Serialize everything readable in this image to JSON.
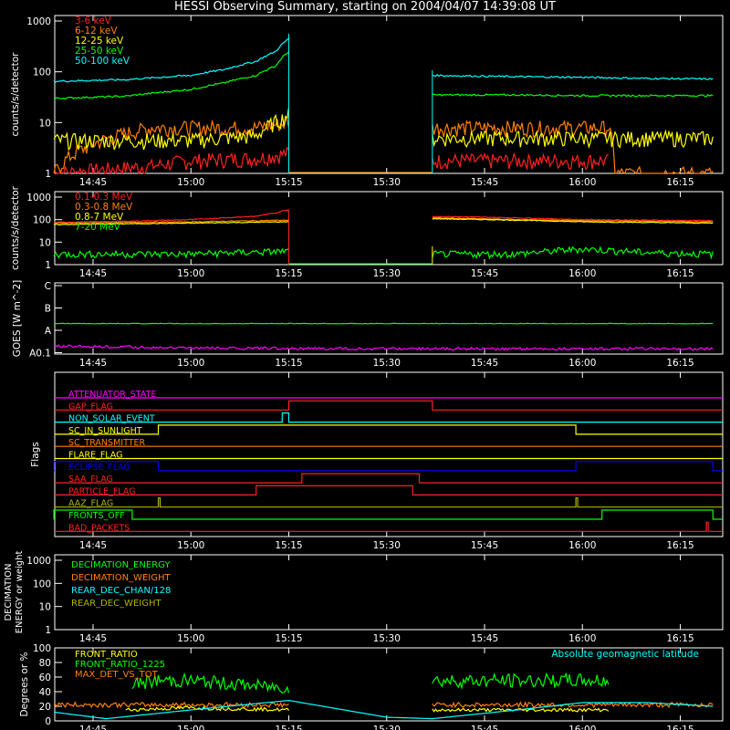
{
  "title": "HESSI Observing Summary, starting on 2004/04/07 14:39:08 UT",
  "x_ticks": [
    "14:45",
    "15:00",
    "15:15",
    "15:30",
    "15:45",
    "16:00",
    "16:15"
  ],
  "colors": {
    "red": "#ff2020",
    "orange": "#ff8000",
    "yellow": "#ffff00",
    "green": "#00ff00",
    "cyan": "#00ffff",
    "magenta": "#ff00ff",
    "blue": "#0000ff",
    "olive": "#b0b000",
    "white": "#ffffff"
  },
  "chart_data": [
    {
      "type": "line",
      "panel": "count rates (low energy)",
      "ylabel": "counts/s/detector",
      "yscale": "log",
      "ylim": [
        1,
        1000
      ],
      "y_ticks": [
        "1",
        "10",
        "100",
        "1000"
      ],
      "gaps": [
        [
          "15:15",
          "15:37"
        ]
      ],
      "series": [
        {
          "name": "3-6 keV",
          "color": "#ff2020",
          "x": [
            "14:39",
            "14:54",
            "15:00",
            "15:10",
            "15:15",
            "15:37",
            "15:50",
            "16:00",
            "16:04"
          ],
          "values": [
            1,
            1.4,
            1.8,
            2,
            2.5,
            1.8,
            1.8,
            1.8,
            1.8
          ]
        },
        {
          "name": "6-12 keV",
          "color": "#ff8000",
          "x": [
            "14:39",
            "14:54",
            "15:00",
            "15:10",
            "15:15",
            "15:37",
            "15:50",
            "16:00",
            "16:04",
            "16:05",
            "16:20"
          ],
          "values": [
            1,
            8,
            8,
            8,
            10,
            8,
            8,
            8,
            8,
            1,
            1
          ]
        },
        {
          "name": "12-25 keV",
          "color": "#ffff00",
          "x": [
            "14:39",
            "14:54",
            "15:00",
            "15:10",
            "15:14",
            "15:15",
            "15:37",
            "15:50",
            "16:00",
            "16:04",
            "16:20"
          ],
          "values": [
            4.5,
            4.5,
            4.5,
            5.5,
            12,
            15,
            5,
            5,
            5,
            5,
            5
          ]
        },
        {
          "name": "25-50 keV",
          "color": "#00ff00",
          "x": [
            "14:39",
            "14:50",
            "15:00",
            "15:05",
            "15:10",
            "15:13",
            "15:15",
            "15:37",
            "15:50",
            "16:00",
            "16:10",
            "16:20"
          ],
          "values": [
            30,
            33,
            45,
            60,
            85,
            130,
            250,
            35,
            35,
            34,
            34,
            34
          ]
        },
        {
          "name": "50-100 keV",
          "color": "#00ffff",
          "x": [
            "14:39",
            "14:50",
            "15:00",
            "15:05",
            "15:10",
            "15:13",
            "15:15",
            "15:37",
            "15:50",
            "16:00",
            "16:10",
            "16:20"
          ],
          "values": [
            65,
            70,
            85,
            110,
            160,
            250,
            450,
            85,
            80,
            78,
            74,
            72
          ]
        }
      ]
    },
    {
      "type": "line",
      "panel": "count rates (high energy)",
      "ylabel": "counts/s/detector",
      "yscale": "log",
      "ylim": [
        1,
        1000
      ],
      "y_ticks": [
        "1",
        "10",
        "100",
        "1000"
      ],
      "gaps": [
        [
          "15:15",
          "15:37"
        ]
      ],
      "series": [
        {
          "name": "0.1-0.3 MeV",
          "color": "#ff2020",
          "x": [
            "14:39",
            "14:50",
            "15:00",
            "15:10",
            "15:13",
            "15:15",
            "15:37",
            "15:50",
            "16:00",
            "16:20"
          ],
          "values": [
            75,
            85,
            100,
            140,
            200,
            280,
            140,
            120,
            100,
            90
          ]
        },
        {
          "name": "0.3-0.8 MeV",
          "color": "#ff8000",
          "x": [
            "14:39",
            "15:00",
            "15:15",
            "15:37",
            "15:50",
            "16:00",
            "16:20"
          ],
          "values": [
            70,
            80,
            95,
            120,
            100,
            90,
            80
          ]
        },
        {
          "name": "0.8-7 MeV",
          "color": "#ffff00",
          "x": [
            "14:39",
            "15:00",
            "15:15",
            "15:37",
            "15:50",
            "16:00",
            "16:20"
          ],
          "values": [
            60,
            70,
            80,
            110,
            95,
            80,
            70
          ]
        },
        {
          "name": "7-20 MeV",
          "color": "#00ff00",
          "x": [
            "14:39",
            "15:00",
            "15:15",
            "15:37",
            "15:50",
            "16:00",
            "16:10",
            "16:20"
          ],
          "values": [
            3,
            3,
            4,
            3,
            3,
            5,
            3.5,
            3
          ]
        }
      ]
    },
    {
      "type": "line",
      "panel": "GOES",
      "ylabel": "GOES [W m^-2]",
      "y_ticks": [
        "A0.1",
        "A",
        "B",
        "C"
      ],
      "series": [
        {
          "name": "GOES long",
          "color": "#00ff00",
          "x": [
            "14:39",
            "15:15",
            "16:20"
          ],
          "values": [
            "B2",
            "B2",
            "B2"
          ]
        },
        {
          "name": "GOES short",
          "color": "#ff00ff",
          "x": [
            "14:39",
            "15:00",
            "15:30",
            "16:20"
          ],
          "values": [
            "A2",
            "A1.6",
            "A1.5",
            "A1.5"
          ]
        }
      ]
    },
    {
      "type": "table",
      "panel": "Flags",
      "ylabel": "Flags",
      "flags": [
        {
          "name": "ATTENUATOR_STATE",
          "color": "#ff00ff",
          "on": []
        },
        {
          "name": "GAP_FLAG",
          "color": "#ff2020",
          "on": [
            [
              "15:15",
              "15:37"
            ]
          ]
        },
        {
          "name": "NON_SOLAR_EVENT",
          "color": "#00ffff",
          "on": [
            [
              "15:14",
              "15:15"
            ]
          ]
        },
        {
          "name": "SC_IN_SUNLIGHT",
          "color": "#ffff00",
          "on": [
            [
              "14:55",
              "15:59"
            ]
          ]
        },
        {
          "name": "SC_TRANSMITTER",
          "color": "#ff8000",
          "on": []
        },
        {
          "name": "FLARE_FLAG",
          "color": "#ffff00",
          "on": []
        },
        {
          "name": "ECLIPSE_FLAG",
          "color": "#0000ff",
          "on": [
            [
              "14:39",
              "14:55"
            ],
            [
              "15:59",
              "16:20"
            ]
          ]
        },
        {
          "name": "SAA_FLAG",
          "color": "#ff2020",
          "on": [
            [
              "15:17",
              "15:35"
            ]
          ]
        },
        {
          "name": "PARTICLE_FLAG",
          "color": "#ff2020",
          "on": [
            [
              "15:10",
              "15:34"
            ]
          ]
        },
        {
          "name": "AAZ_FLAG",
          "color": "#b0b000",
          "on": [
            [
              "14:55",
              "14:55"
            ],
            [
              "15:59",
              "15:59"
            ]
          ]
        },
        {
          "name": "FRONTS_OFF",
          "color": "#00ff00",
          "on": [
            [
              "14:39",
              "14:51"
            ],
            [
              "16:03",
              "16:20"
            ]
          ]
        },
        {
          "name": "BAD_PACKETS",
          "color": "#ff2020",
          "on": [
            [
              "16:19",
              "16:19"
            ]
          ]
        }
      ]
    },
    {
      "type": "line",
      "panel": "Decimation",
      "ylabel": "DECIMATION ENERGY or weight",
      "yscale": "log",
      "ylim": [
        1,
        1000
      ],
      "y_ticks": [
        "1",
        "10",
        "100",
        "1000"
      ],
      "series": [
        {
          "name": "DECIMATION_ENERGY",
          "color": "#00ff00",
          "values": []
        },
        {
          "name": "DECIMATION_WEIGHT",
          "color": "#ff8000",
          "values": []
        },
        {
          "name": "REAR_DEC_CHAN/128",
          "color": "#00ffff",
          "values": []
        },
        {
          "name": "REAR_DEC_WEIGHT",
          "color": "#b0b000",
          "values": []
        }
      ]
    },
    {
      "type": "line",
      "panel": "Ratios",
      "ylabel": "Degrees or %",
      "ylim": [
        0,
        100
      ],
      "y_ticks": [
        "0",
        "20",
        "40",
        "60",
        "80",
        "100"
      ],
      "annotation": "Absolute geomagnetic latitude",
      "series": [
        {
          "name": "FRONT_RATIO",
          "color": "#ffff00",
          "x": [
            "14:50",
            "15:00",
            "15:15",
            "15:37",
            "15:50",
            "16:04"
          ],
          "values": [
            15,
            18,
            15,
            15,
            15,
            15
          ]
        },
        {
          "name": "FRONT_RATIO_1225",
          "color": "#00ff00",
          "x": [
            "14:51",
            "14:55",
            "15:00",
            "15:10",
            "15:15",
            "15:37",
            "15:50",
            "16:00",
            "16:04"
          ],
          "values": [
            50,
            55,
            55,
            48,
            45,
            55,
            55,
            55,
            55
          ]
        },
        {
          "name": "MAX_DET_VS_TOT",
          "color": "#ff8000",
          "x": [
            "14:39",
            "15:00",
            "15:15",
            "15:37",
            "16:00",
            "16:20"
          ],
          "values": [
            22,
            22,
            22,
            22,
            22,
            22
          ]
        },
        {
          "name": "Absolute geomagnetic latitude",
          "color": "#00ffff",
          "x": [
            "14:39",
            "14:47",
            "15:00",
            "15:15",
            "15:30",
            "15:37",
            "15:50",
            "16:00",
            "16:10",
            "16:20"
          ],
          "values": [
            12,
            3,
            15,
            28,
            5,
            3,
            15,
            25,
            25,
            20
          ]
        }
      ]
    }
  ]
}
